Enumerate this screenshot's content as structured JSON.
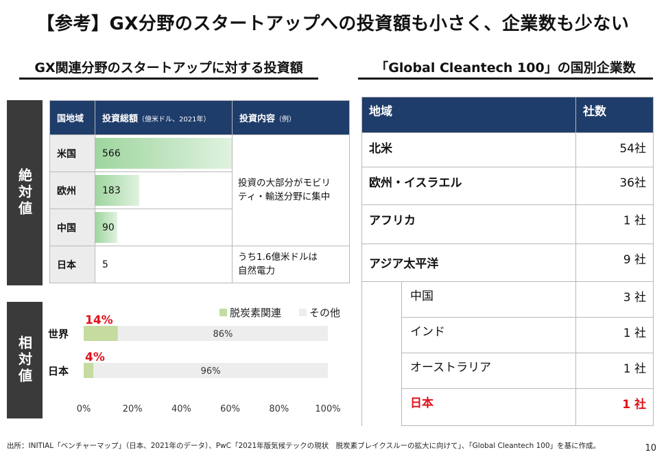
{
  "title": "【参考】GX分野のスタートアップへの投資額も小さく、企業数も少ない",
  "left": {
    "heading": "GX関連分野のスタートアップに対する投資額",
    "side_label_abs": "絶対値",
    "side_label_rel": "相対値",
    "table": {
      "col_region": "国地域",
      "col_amount": "投資総額",
      "col_amount_note": "（億米ドル、2021年）",
      "col_content": "投資内容",
      "col_content_note": "（例）",
      "rows": [
        {
          "region": "米国",
          "value": "566"
        },
        {
          "region": "欧州",
          "value": "183"
        },
        {
          "region": "中国",
          "value": "90"
        },
        {
          "region": "日本",
          "value": "5"
        }
      ],
      "desc_main": "投資の大部分がモビリティ・輸送分野に集中",
      "desc_main_l1": "投資の大部分がモビリ",
      "desc_main_l2": "ティ・輸送分野に集中",
      "desc_japan_l1": "うち1.6億米ドルは",
      "desc_japan_l2": "自然電力"
    }
  },
  "chart_data": {
    "type": "bar",
    "orientation": "horizontal",
    "stacked": true,
    "categories": [
      "世界",
      "日本"
    ],
    "series": [
      {
        "name": "脱炭素関連",
        "values": [
          14,
          4
        ],
        "labels": [
          "14%",
          "4%"
        ],
        "color": "#c5dba0"
      },
      {
        "name": "その他",
        "values": [
          86,
          96
        ],
        "labels": [
          "86%",
          "96%"
        ],
        "color": "#ededed"
      }
    ],
    "xticks": [
      "0%",
      "20%",
      "40%",
      "60%",
      "80%",
      "100%"
    ],
    "xlim": [
      0,
      100
    ],
    "legend": "top-right"
  },
  "right": {
    "heading": "「Global Cleantech 100」の国別企業数",
    "col_region": "地域",
    "col_count": "社数",
    "rows": [
      {
        "region": "北米",
        "count": "54社"
      },
      {
        "region": "欧州・イスラエル",
        "count": "36社"
      },
      {
        "region": "アフリカ",
        "count": "1 社"
      },
      {
        "region": "アジア太平洋",
        "count": "9 社"
      }
    ],
    "sub_rows": [
      {
        "region": "中国",
        "count": "3 社"
      },
      {
        "region": "インド",
        "count": "1 社"
      },
      {
        "region": "オーストラリア",
        "count": "1 社"
      },
      {
        "region": "日本",
        "count": "1 社"
      }
    ]
  },
  "footer": "出所：INITIAL「ベンチャーマップ」（日本、2021年のデータ）、PwC「2021年版気候テックの現状　脱炭素ブレイクスルーの拡大に向けて」、「Global Cleantech 100」を基に作成。",
  "page_number": "10",
  "colors": {
    "header_navy": "#1f3d6b",
    "side_label": "#3a3a3a",
    "accent_red": "#e0111b",
    "decarb_green": "#c5dba0"
  }
}
